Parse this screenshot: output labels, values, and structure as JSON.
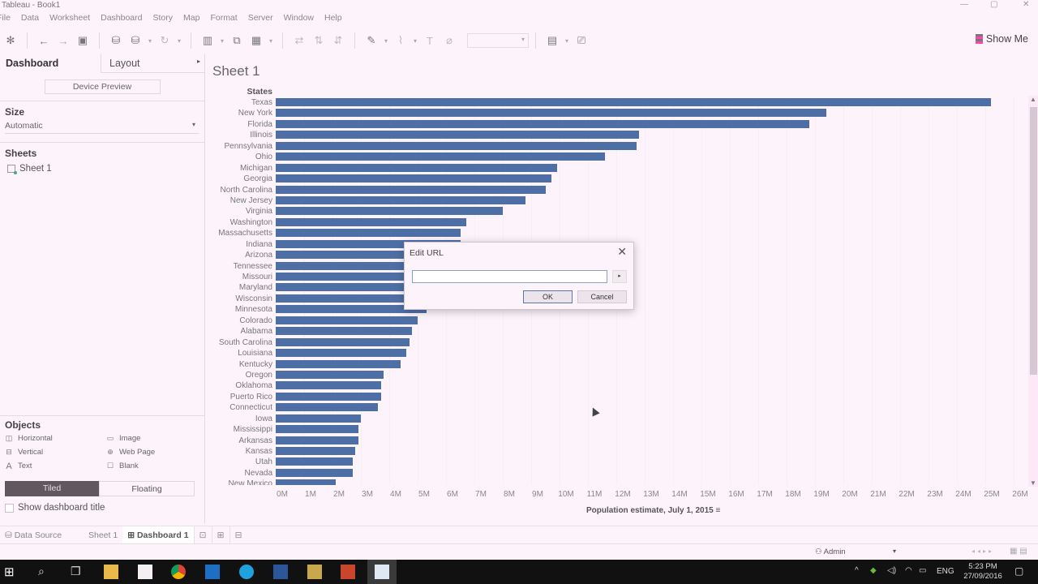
{
  "window": {
    "title": "Tableau - Book1",
    "controls": [
      "minimize",
      "maximize",
      "close"
    ]
  },
  "menu": [
    "File",
    "Data",
    "Worksheet",
    "Dashboard",
    "Story",
    "Map",
    "Format",
    "Server",
    "Window",
    "Help"
  ],
  "toolbar": {
    "show_me_label": "Show Me"
  },
  "left_panel": {
    "tabs": [
      {
        "label": "Dashboard",
        "active": true
      },
      {
        "label": "Layout",
        "active": false
      }
    ],
    "device_preview_label": "Device Preview",
    "size": {
      "heading": "Size",
      "value": "Automatic"
    },
    "sheets": {
      "heading": "Sheets",
      "items": [
        "Sheet 1"
      ]
    },
    "objects": {
      "heading": "Objects",
      "items": [
        {
          "label": "Horizontal",
          "icon": "horizontal-container-icon"
        },
        {
          "label": "Image",
          "icon": "image-icon"
        },
        {
          "label": "Vertical",
          "icon": "vertical-container-icon"
        },
        {
          "label": "Web Page",
          "icon": "globe-icon"
        },
        {
          "label": "Text",
          "icon": "text-icon"
        },
        {
          "label": "Blank",
          "icon": "blank-icon"
        }
      ],
      "tiled_label": "Tiled",
      "floating_label": "Floating",
      "mode": "Tiled"
    },
    "show_dashboard_title_label": "Show dashboard title",
    "show_dashboard_title_checked": false
  },
  "sheet": {
    "title": "Sheet 1",
    "row_header": "States",
    "bar_color": "#4e6fa6"
  },
  "chart_data": {
    "type": "bar",
    "orientation": "horizontal",
    "title": "Sheet 1",
    "ylabel": "States",
    "xlabel": "Population estimate, July 1, 2015",
    "xlim": [
      0,
      26000000
    ],
    "x_ticks": [
      "0M",
      "1M",
      "2M",
      "3M",
      "4M",
      "5M",
      "6M",
      "7M",
      "8M",
      "9M",
      "10M",
      "11M",
      "12M",
      "13M",
      "14M",
      "15M",
      "16M",
      "17M",
      "18M",
      "19M",
      "20M",
      "21M",
      "22M",
      "23M",
      "24M",
      "25M",
      "26M"
    ],
    "sorted": "descending",
    "categories": [
      "Texas",
      "New York",
      "Florida",
      "Illinois",
      "Pennsylvania",
      "Ohio",
      "Michigan",
      "Georgia",
      "North Carolina",
      "New Jersey",
      "Virginia",
      "Washington",
      "Massachusetts",
      "Indiana",
      "Arizona",
      "Tennessee",
      "Missouri",
      "Maryland",
      "Wisconsin",
      "Minnesota",
      "Colorado",
      "Alabama",
      "South Carolina",
      "Louisiana",
      "Kentucky",
      "Oregon",
      "Oklahoma",
      "Puerto Rico",
      "Connecticut",
      "Iowa",
      "Mississippi",
      "Arkansas",
      "Kansas",
      "Utah",
      "Nevada",
      "New Mexico"
    ],
    "values": [
      25200000,
      19400000,
      18800000,
      12800000,
      12700000,
      11600000,
      9900000,
      9700000,
      9500000,
      8800000,
      8000000,
      6700000,
      6500000,
      6500000,
      6400000,
      6300000,
      6000000,
      5900000,
      5700000,
      5300000,
      5000000,
      4800000,
      4700000,
      4600000,
      4400000,
      3800000,
      3700000,
      3700000,
      3600000,
      3000000,
      2900000,
      2900000,
      2800000,
      2700000,
      2700000,
      2100000
    ],
    "grid": true,
    "legend": "none"
  },
  "dialog": {
    "title": "Edit URL",
    "url_value": "",
    "ok_label": "OK",
    "cancel_label": "Cancel"
  },
  "sheet_tabs": {
    "data_source": "Data Source",
    "tabs": [
      {
        "label": "Sheet 1",
        "active": false
      },
      {
        "label": "Dashboard 1",
        "active": true
      }
    ]
  },
  "status": {
    "user": "Admin"
  },
  "taskbar": {
    "language": "ENG",
    "time": "5:23 PM",
    "date": "27/09/2016"
  }
}
